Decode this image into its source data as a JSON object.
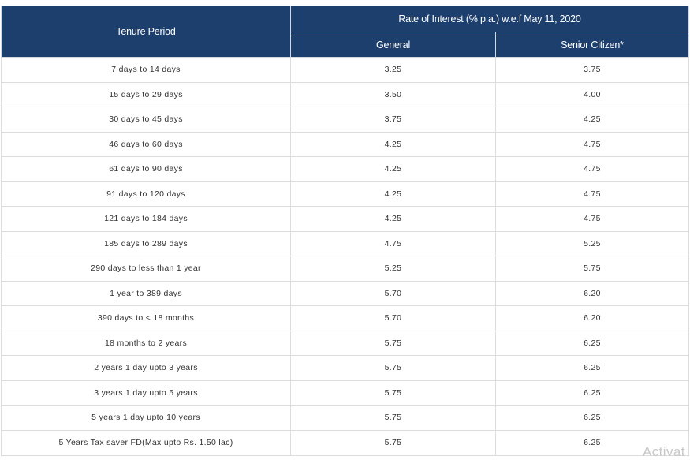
{
  "table": {
    "header": {
      "tenure": "Tenure Period",
      "rate_group": "Rate of Interest (% p.a.) w.e.f May 11, 2020",
      "general": "General",
      "senior": "Senior Citizen*"
    },
    "rows": [
      {
        "tenure": "7 days to 14 days",
        "general": "3.25",
        "senior": "3.75"
      },
      {
        "tenure": "15 days to 29 days",
        "general": "3.50",
        "senior": "4.00"
      },
      {
        "tenure": "30 days to 45 days",
        "general": "3.75",
        "senior": "4.25"
      },
      {
        "tenure": "46 days to 60 days",
        "general": "4.25",
        "senior": "4.75"
      },
      {
        "tenure": "61 days to 90 days",
        "general": "4.25",
        "senior": "4.75"
      },
      {
        "tenure": "91 days to 120 days",
        "general": "4.25",
        "senior": "4.75"
      },
      {
        "tenure": "121 days to 184 days",
        "general": "4.25",
        "senior": "4.75"
      },
      {
        "tenure": "185 days to 289 days",
        "general": "4.75",
        "senior": "5.25"
      },
      {
        "tenure": "290 days to less than 1 year",
        "general": "5.25",
        "senior": "5.75"
      },
      {
        "tenure": "1 year to 389 days",
        "general": "5.70",
        "senior": "6.20"
      },
      {
        "tenure": "390 days to < 18 months",
        "general": "5.70",
        "senior": "6.20"
      },
      {
        "tenure": "18 months to 2 years",
        "general": "5.75",
        "senior": "6.25"
      },
      {
        "tenure": "2 years 1 day upto 3 years",
        "general": "5.75",
        "senior": "6.25"
      },
      {
        "tenure": "3 years 1 day upto 5 years",
        "general": "5.75",
        "senior": "6.25"
      },
      {
        "tenure": "5 years 1 day upto 10 years",
        "general": "5.75",
        "senior": "6.25"
      },
      {
        "tenure": "5 Years Tax saver FD(Max upto Rs. 1.50 lac)",
        "general": "5.75",
        "senior": "6.25"
      }
    ]
  },
  "watermark": "Activat",
  "colors": {
    "header_bg": "#1d3f6e",
    "header_text": "#ffffff",
    "cell_text": "#333333",
    "border": "#dcdcdc"
  }
}
